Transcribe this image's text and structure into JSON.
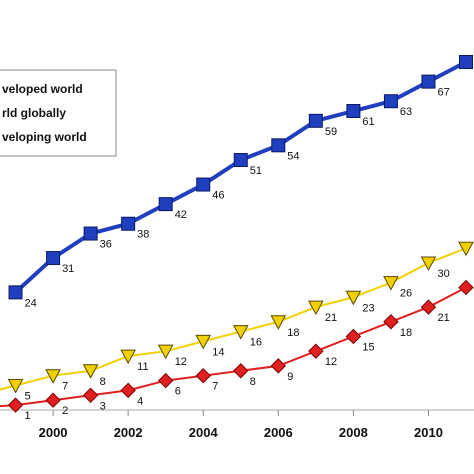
{
  "chart_data": {
    "type": "line",
    "x": [
      1998,
      1999,
      2000,
      2001,
      2002,
      2003,
      2004,
      2005,
      2006,
      2007,
      2008,
      2009,
      2010,
      2011
    ],
    "xticks": [
      "2000",
      "2002",
      "2004",
      "2006",
      "2008",
      "2010"
    ],
    "grid": false,
    "legend_position": "top-left",
    "series": [
      {
        "name": "veloped world",
        "color": "#1f3fbf",
        "marker": "square",
        "values": [
          null,
          24,
          31,
          36,
          38,
          42,
          46,
          51,
          54,
          59,
          61,
          63,
          67,
          71
        ],
        "labels": [
          "",
          "24",
          "31",
          "36",
          "38",
          "42",
          "46",
          "51",
          "54",
          "59",
          "61",
          "63",
          "67",
          ""
        ]
      },
      {
        "name": "rld globally",
        "color": "#f0d000",
        "marker": "triangle-down",
        "values": [
          3,
          5,
          7,
          8,
          11,
          12,
          14,
          16,
          18,
          21,
          23,
          26,
          30,
          33
        ],
        "labels": [
          "",
          "5",
          "7",
          "8",
          "11",
          "12",
          "14",
          "16",
          "18",
          "21",
          "23",
          "26",
          "30",
          ""
        ]
      },
      {
        "name": "veloping world",
        "color": "#e02020",
        "marker": "diamond",
        "values": [
          0.5,
          1,
          2,
          3,
          4,
          6,
          7,
          8,
          9,
          12,
          15,
          18,
          21,
          25
        ],
        "labels": [
          "",
          "1",
          "2",
          "3",
          "4",
          "6",
          "7",
          "8",
          "9",
          "12",
          "15",
          "18",
          "21",
          ""
        ]
      }
    ]
  }
}
